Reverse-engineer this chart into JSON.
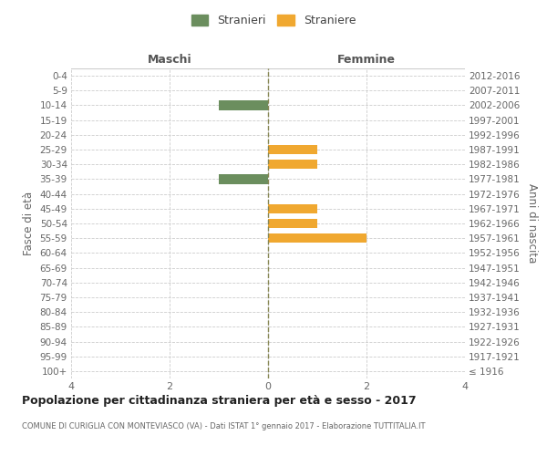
{
  "age_groups": [
    "100+",
    "95-99",
    "90-94",
    "85-89",
    "80-84",
    "75-79",
    "70-74",
    "65-69",
    "60-64",
    "55-59",
    "50-54",
    "45-49",
    "40-44",
    "35-39",
    "30-34",
    "25-29",
    "20-24",
    "15-19",
    "10-14",
    "5-9",
    "0-4"
  ],
  "birth_years": [
    "≤ 1916",
    "1917-1921",
    "1922-1926",
    "1927-1931",
    "1932-1936",
    "1937-1941",
    "1942-1946",
    "1947-1951",
    "1952-1956",
    "1957-1961",
    "1962-1966",
    "1967-1971",
    "1972-1976",
    "1977-1981",
    "1982-1986",
    "1987-1991",
    "1992-1996",
    "1997-2001",
    "2002-2006",
    "2007-2011",
    "2012-2016"
  ],
  "males": [
    0,
    0,
    0,
    0,
    0,
    0,
    0,
    0,
    0,
    0,
    0,
    0,
    0,
    -1,
    0,
    0,
    0,
    0,
    -1,
    0,
    0
  ],
  "females": [
    0,
    0,
    0,
    0,
    0,
    0,
    0,
    0,
    0,
    2,
    1,
    1,
    0,
    0,
    1,
    1,
    0,
    0,
    0,
    0,
    0
  ],
  "male_color": "#6b8e5e",
  "female_color": "#f0a830",
  "male_label": "Stranieri",
  "female_label": "Straniere",
  "xlim": [
    -4,
    4
  ],
  "xticks": [
    -4,
    -2,
    0,
    2,
    4
  ],
  "xticklabels": [
    "4",
    "2",
    "0",
    "2",
    "4"
  ],
  "ylabel_left": "Fasce di età",
  "ylabel_right": "Anni di nascita",
  "header_left": "Maschi",
  "header_right": "Femmine",
  "title": "Popolazione per cittadinanza straniera per età e sesso - 2017",
  "subtitle": "COMUNE DI CURIGLIA CON MONTEVIASCO (VA) - Dati ISTAT 1° gennaio 2017 - Elaborazione TUTTITALIA.IT",
  "background_color": "#ffffff",
  "grid_color": "#cccccc",
  "center_line_color": "#888855",
  "text_color": "#666666",
  "header_color": "#555555",
  "title_color": "#222222",
  "bar_height": 0.65
}
